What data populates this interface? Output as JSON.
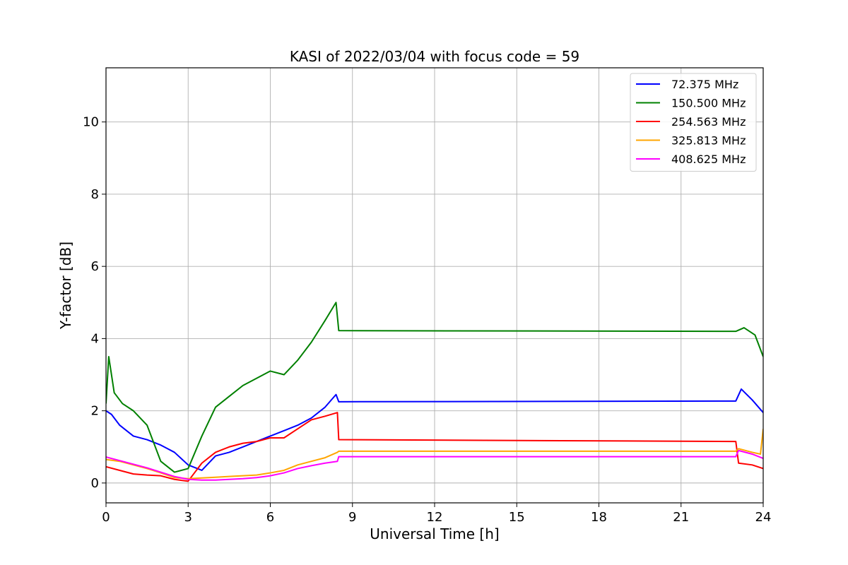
{
  "chart_data": {
    "type": "line",
    "title": "KASI of 2022/03/04 with focus code = 59",
    "xlabel": "Universal Time [h]",
    "ylabel": "Y-factor [dB]",
    "xlim": [
      0,
      24
    ],
    "ylim": [
      -0.55,
      11.5
    ],
    "xticks": [
      0,
      3,
      6,
      9,
      12,
      15,
      18,
      21,
      24
    ],
    "xtick_labels": [
      "0",
      "3",
      "6",
      "9",
      "12",
      "15",
      "18",
      "21",
      "24"
    ],
    "yticks": [
      0,
      2,
      4,
      6,
      8,
      10
    ],
    "ytick_labels": [
      "0",
      "2",
      "4",
      "6",
      "8",
      "10"
    ],
    "grid": true,
    "legend_position": "top-right",
    "series": [
      {
        "name": " 72.375 MHz",
        "color": "#0000ff",
        "x": [
          0,
          0.2,
          0.5,
          1.0,
          1.5,
          2.0,
          2.5,
          3.0,
          3.5,
          4.0,
          4.5,
          5.0,
          5.5,
          6.0,
          6.5,
          7.0,
          7.5,
          8.0,
          8.4,
          8.5,
          23.0,
          23.2,
          23.6,
          24.0
        ],
        "y": [
          2.0,
          1.9,
          1.6,
          1.3,
          1.2,
          1.05,
          0.85,
          0.5,
          0.35,
          0.75,
          0.85,
          1.0,
          1.15,
          1.3,
          1.45,
          1.6,
          1.8,
          2.1,
          2.45,
          2.25,
          2.27,
          2.6,
          2.3,
          1.95
        ]
      },
      {
        "name": "150.500 MHz",
        "color": "#008000",
        "x": [
          0,
          0.1,
          0.3,
          0.6,
          1.0,
          1.5,
          2.0,
          2.5,
          3.0,
          3.5,
          4.0,
          4.5,
          5.0,
          5.5,
          6.0,
          6.5,
          7.0,
          7.5,
          8.0,
          8.4,
          8.5,
          23.0,
          23.3,
          23.7,
          24.0
        ],
        "y": [
          2.2,
          3.5,
          2.5,
          2.2,
          2.0,
          1.6,
          0.6,
          0.3,
          0.4,
          1.3,
          2.1,
          2.4,
          2.7,
          2.9,
          3.1,
          3.0,
          3.4,
          3.9,
          4.5,
          5.0,
          4.22,
          4.2,
          4.3,
          4.1,
          3.5
        ]
      },
      {
        "name": "254.563 MHz",
        "color": "#ff0000",
        "x": [
          0,
          0.5,
          1.0,
          1.5,
          2.0,
          2.5,
          3.0,
          3.5,
          4.0,
          4.5,
          5.0,
          5.5,
          6.0,
          6.5,
          7.0,
          7.5,
          8.0,
          8.45,
          8.5,
          23.0,
          23.1,
          23.6,
          24.0
        ],
        "y": [
          0.45,
          0.35,
          0.25,
          0.22,
          0.2,
          0.1,
          0.05,
          0.55,
          0.85,
          1.0,
          1.1,
          1.15,
          1.25,
          1.25,
          1.5,
          1.75,
          1.85,
          1.95,
          1.2,
          1.15,
          0.55,
          0.5,
          0.4
        ]
      },
      {
        "name": "325.813 MHz",
        "color": "#ffa500",
        "x": [
          0,
          0.5,
          1.0,
          1.5,
          2.0,
          2.5,
          3.0,
          3.5,
          4.0,
          4.5,
          5.0,
          5.5,
          6.0,
          6.5,
          7.0,
          7.5,
          8.0,
          8.45,
          8.5,
          23.0,
          23.1,
          23.6,
          23.9,
          24.0
        ],
        "y": [
          0.65,
          0.6,
          0.5,
          0.4,
          0.28,
          0.15,
          0.12,
          0.14,
          0.16,
          0.18,
          0.2,
          0.22,
          0.28,
          0.35,
          0.5,
          0.6,
          0.7,
          0.85,
          0.88,
          0.88,
          0.95,
          0.85,
          0.8,
          1.5
        ]
      },
      {
        "name": "408.625 MHz",
        "color": "#ff00ff",
        "x": [
          0,
          0.5,
          1.0,
          1.5,
          2.0,
          2.5,
          3.0,
          3.5,
          4.0,
          4.5,
          5.0,
          5.5,
          6.0,
          6.5,
          7.0,
          7.5,
          8.0,
          8.45,
          8.5,
          23.0,
          23.1,
          23.6,
          24.0
        ],
        "y": [
          0.72,
          0.62,
          0.52,
          0.42,
          0.3,
          0.18,
          0.1,
          0.08,
          0.08,
          0.1,
          0.12,
          0.15,
          0.2,
          0.28,
          0.4,
          0.48,
          0.55,
          0.6,
          0.73,
          0.73,
          0.9,
          0.8,
          0.68
        ]
      }
    ]
  }
}
